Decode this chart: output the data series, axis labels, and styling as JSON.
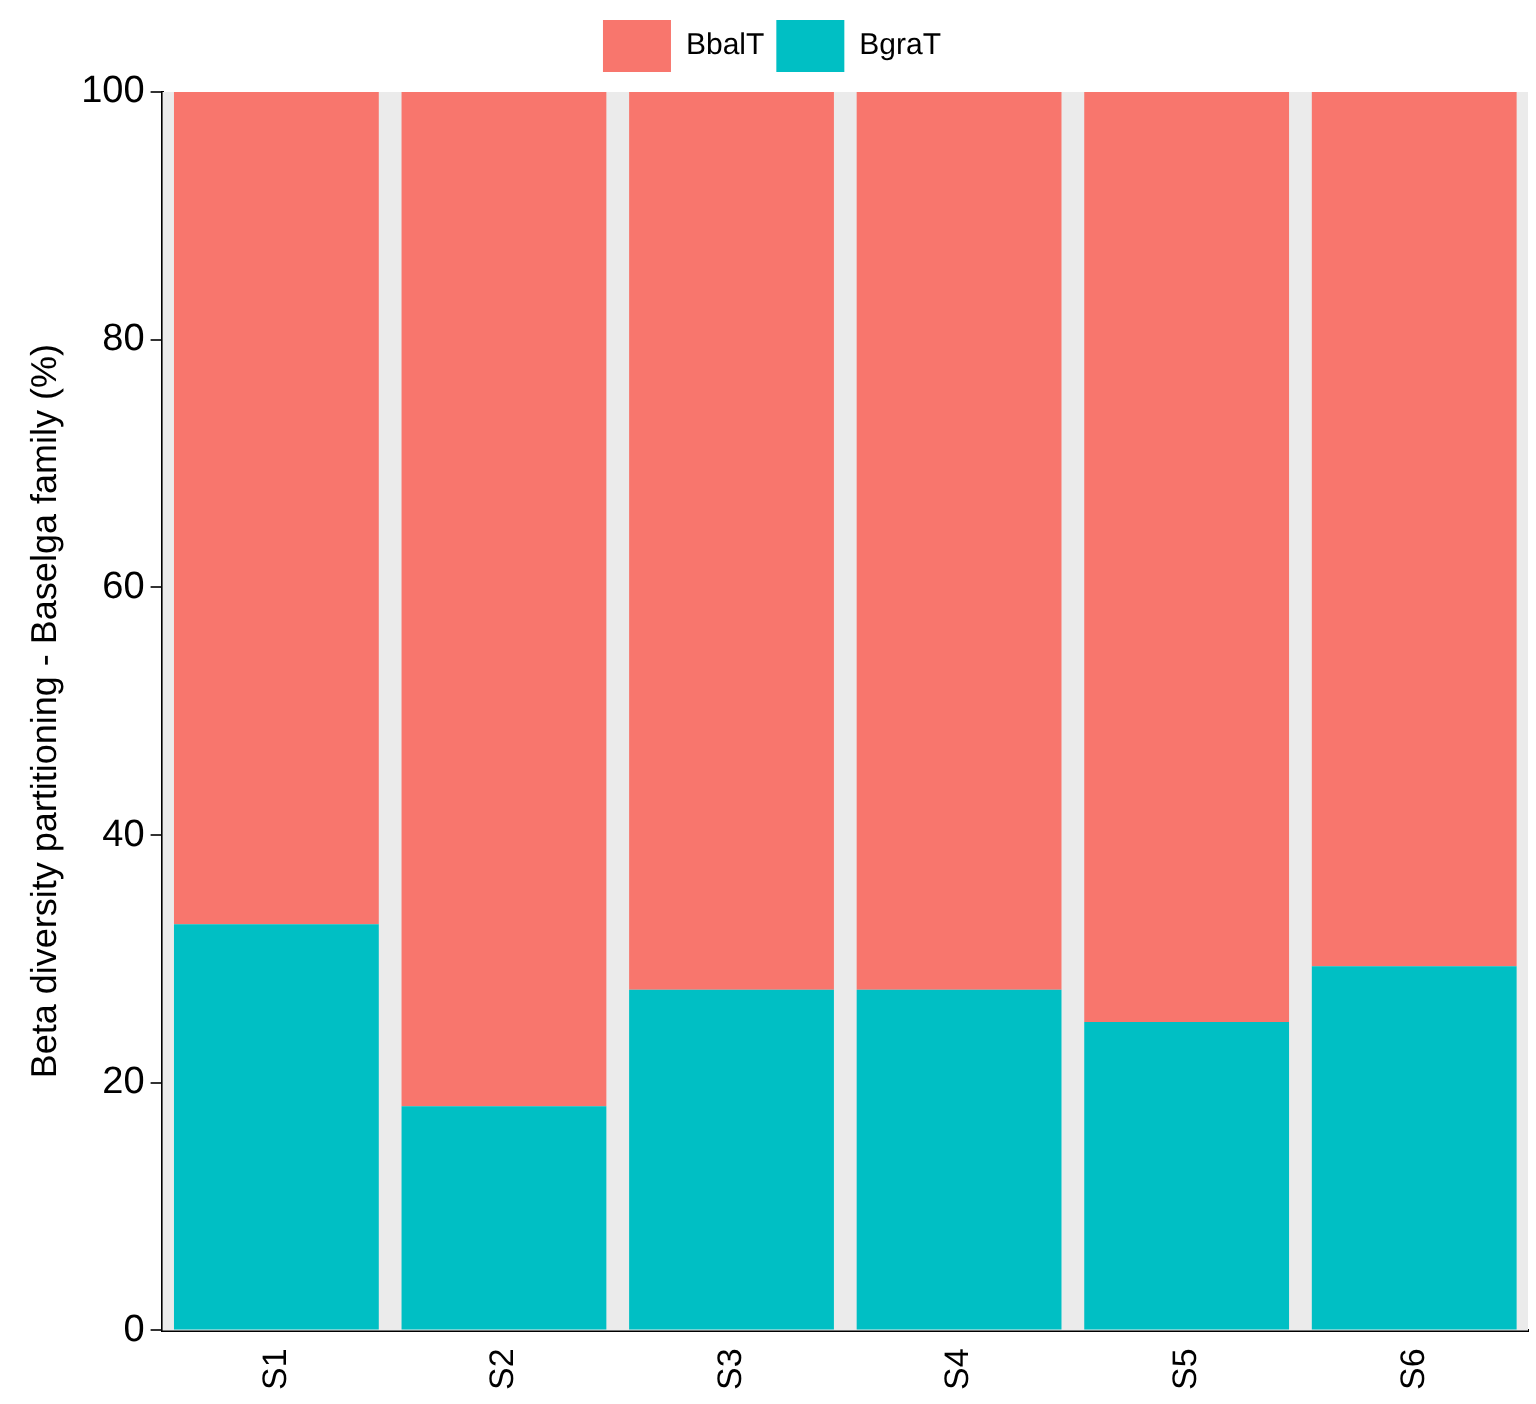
{
  "chart_data": {
    "type": "bar",
    "ylabel": "Beta diversity partitioning - Baselga family (%)",
    "categories": [
      "S1",
      "S2",
      "S3",
      "S4",
      "S5",
      "S6"
    ],
    "stacked": true,
    "legend": "top",
    "grid": false,
    "ylim": [
      0,
      100
    ],
    "yticks": [
      0,
      20,
      40,
      60,
      80,
      100
    ],
    "series": [
      {
        "name": "BgraT",
        "color": "#00bfc4",
        "values": [
          32.8,
          18.1,
          27.5,
          27.5,
          24.9,
          29.4
        ]
      },
      {
        "name": "BbalT",
        "color": "#f8766d",
        "values": [
          67.2,
          81.9,
          72.5,
          72.5,
          75.1,
          70.6
        ]
      }
    ]
  }
}
